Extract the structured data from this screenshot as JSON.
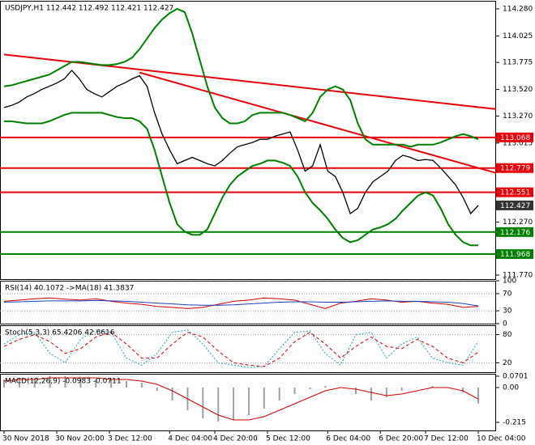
{
  "chart_data": [
    {
      "type": "line",
      "title": "USDJPY,H1  112.442 112.492 112.421 112.427",
      "xticks": [
        {
          "value": 0,
          "label": "30 Nov 2018"
        },
        {
          "value": 7,
          "label": "30 Nov 20:00"
        },
        {
          "value": 14,
          "label": "3 Dec 12:00"
        },
        {
          "value": 22,
          "label": "4 Dec 04:00"
        },
        {
          "value": 28,
          "label": "4 Dec 20:00"
        },
        {
          "value": 35,
          "label": "5 Dec 12:00"
        },
        {
          "value": 43,
          "label": "6 Dec 04:00"
        },
        {
          "value": 50,
          "label": "6 Dec 20:00"
        },
        {
          "value": 56,
          "label": "7 Dec 12:00"
        },
        {
          "value": 63,
          "label": "10 Dec 04:00"
        }
      ],
      "ylim": [
        111.732,
        114.356
      ],
      "yticks": [
        {
          "value": 114.28,
          "label": "114.280"
        },
        114.025,
        113.775,
        {
          "value": 113.52,
          "label": "113.520"
        },
        {
          "value": 113.27,
          "label": "113.270"
        },
        113.015,
        {
          "value": 112.27,
          "label": "112.270"
        },
        {
          "value": 111.77,
          "label": "111.770"
        }
      ],
      "series": [
        {
          "color": "#000000",
          "width": 1.3,
          "values": [
            113.35,
            113.37,
            113.4,
            113.45,
            113.48,
            113.52,
            113.55,
            113.58,
            113.62,
            113.7,
            113.62,
            113.52,
            113.48,
            113.45,
            113.5,
            113.55,
            113.58,
            113.62,
            113.65,
            113.55,
            113.3,
            113.1,
            112.95,
            112.82,
            112.85,
            112.88,
            112.85,
            112.82,
            112.8,
            112.85,
            112.92,
            112.98,
            113.0,
            113.02,
            113.05,
            113.05,
            113.08,
            113.1,
            113.12,
            112.95,
            112.75,
            112.8,
            113.0,
            112.75,
            112.7,
            112.55,
            112.35,
            112.4,
            112.55,
            112.65,
            112.7,
            112.75,
            112.85,
            112.9,
            112.88,
            112.85,
            112.86,
            112.85,
            112.78,
            112.7,
            112.62,
            112.5,
            112.35,
            112.427
          ]
        },
        {
          "color": "#008000",
          "width": 2,
          "values": [
            113.55,
            113.56,
            113.58,
            113.6,
            113.62,
            113.64,
            113.66,
            113.7,
            113.74,
            113.78,
            113.78,
            113.77,
            113.76,
            113.75,
            113.75,
            113.76,
            113.78,
            113.82,
            113.9,
            114.0,
            114.1,
            114.18,
            114.24,
            114.28,
            114.25,
            114.05,
            113.8,
            113.55,
            113.35,
            113.25,
            113.2,
            113.2,
            113.22,
            113.28,
            113.3,
            113.3,
            113.3,
            113.3,
            113.28,
            113.25,
            113.22,
            113.3,
            113.45,
            113.52,
            113.55,
            113.52,
            113.42,
            113.2,
            113.05,
            113.0,
            113.0,
            113.0,
            113.0,
            113.0,
            112.98,
            113.0,
            113.0,
            113.0,
            113.02,
            113.05,
            113.08,
            113.1,
            113.08,
            113.05
          ]
        },
        {
          "color": "#008000",
          "width": 2,
          "values": [
            113.22,
            113.22,
            113.21,
            113.2,
            113.2,
            113.2,
            113.22,
            113.25,
            113.28,
            113.3,
            113.3,
            113.3,
            113.3,
            113.3,
            113.28,
            113.26,
            113.25,
            113.25,
            113.22,
            113.15,
            112.95,
            112.7,
            112.45,
            112.25,
            112.18,
            112.15,
            112.15,
            112.2,
            112.35,
            112.5,
            112.62,
            112.7,
            112.75,
            112.8,
            112.82,
            112.85,
            112.85,
            112.83,
            112.8,
            112.7,
            112.55,
            112.45,
            112.38,
            112.3,
            112.2,
            112.12,
            112.08,
            112.1,
            112.15,
            112.2,
            112.22,
            112.25,
            112.3,
            112.38,
            112.45,
            112.52,
            112.55,
            112.52,
            112.4,
            112.25,
            112.15,
            112.08,
            112.05,
            112.05
          ]
        }
      ],
      "trendlines": [
        {
          "color": "#e8000b",
          "points": [
            [
              0,
              113.85
            ],
            [
              66,
              113.33
            ]
          ]
        },
        {
          "color": "#e8000b",
          "points": [
            [
              18,
              113.68
            ],
            [
              66,
              112.72
            ]
          ]
        }
      ],
      "levels": [
        {
          "value": 113.068,
          "color": "#e8000b"
        },
        {
          "value": 112.779,
          "color": "#e8000b"
        },
        {
          "value": 112.551,
          "color": "#e8000b"
        },
        {
          "value": 112.176,
          "color": "#008000"
        },
        {
          "value": 111.968,
          "color": "#008000"
        }
      ],
      "last": 112.427
    },
    {
      "type": "line",
      "title": "RSI(14) 40.1072  ->MA(18) 41.3837",
      "ylim": [
        0,
        100
      ],
      "yticks": [
        100,
        70,
        30,
        0
      ],
      "grid": true,
      "series": [
        {
          "color": "#d00000",
          "width": 1,
          "values": [
            52,
            55,
            58,
            60,
            57,
            55,
            58,
            52,
            48,
            45,
            40,
            38,
            35,
            38,
            45,
            52,
            55,
            60,
            58,
            55,
            45,
            35,
            48,
            52,
            58,
            55,
            50,
            52,
            48,
            45,
            38,
            40.1072
          ]
        },
        {
          "color": "#1f3fbf",
          "width": 1,
          "values": [
            50,
            51,
            52,
            53,
            53,
            53,
            54,
            53,
            52,
            50,
            48,
            46,
            44,
            43,
            43,
            44,
            46,
            48,
            50,
            51,
            51,
            50,
            50,
            51,
            52,
            53,
            52,
            52,
            51,
            50,
            47,
            41.3837
          ]
        }
      ]
    },
    {
      "type": "line",
      "title": "Stoch(5,3,3) 65.4206 42.6616",
      "ylim": [
        0,
        100
      ],
      "yticks": [
        80,
        20
      ],
      "grid": true,
      "series": [
        {
          "color": "#20a0c0",
          "width": 1,
          "dash": "2,2",
          "values": [
            60,
            80,
            85,
            40,
            20,
            70,
            90,
            85,
            30,
            15,
            40,
            85,
            90,
            60,
            20,
            15,
            10,
            12,
            50,
            85,
            88,
            40,
            15,
            80,
            85,
            30,
            60,
            75,
            30,
            20,
            15,
            65.4206
          ]
        },
        {
          "color": "#d00000",
          "width": 1,
          "dash": "4,3",
          "values": [
            55,
            70,
            80,
            65,
            40,
            50,
            75,
            85,
            60,
            30,
            30,
            60,
            85,
            75,
            45,
            20,
            15,
            12,
            30,
            65,
            85,
            60,
            30,
            55,
            75,
            55,
            50,
            70,
            55,
            30,
            20,
            42.6616
          ]
        }
      ]
    },
    {
      "type": "line",
      "title": "MACD(12,26,9) -0.0983 -0.0711",
      "ylim": [
        -0.265,
        0.085
      ],
      "yticks": [
        0.0701,
        {
          "value": 0,
          "label": "0.00"
        },
        -0.215
      ],
      "series": [
        {
          "type": "bar",
          "color": "#a0a0a0",
          "values": [
            0.05,
            0.06,
            0.06,
            0.07,
            0.07,
            0.06,
            0.05,
            0.05,
            0.04,
            0.03,
            -0.02,
            -0.08,
            -0.14,
            -0.19,
            -0.21,
            -0.2,
            -0.17,
            -0.13,
            -0.08,
            -0.04,
            -0.01,
            0.01,
            0.0,
            -0.04,
            -0.08,
            -0.06,
            -0.02,
            0.0,
            0.01,
            0.0,
            -0.03,
            -0.0983
          ]
        },
        {
          "color": "#d00000",
          "width": 1,
          "values": [
            0.04,
            0.05,
            0.05,
            0.06,
            0.06,
            0.06,
            0.06,
            0.05,
            0.05,
            0.04,
            0.02,
            -0.02,
            -0.07,
            -0.12,
            -0.17,
            -0.2,
            -0.2,
            -0.18,
            -0.14,
            -0.1,
            -0.06,
            -0.02,
            0.0,
            -0.01,
            -0.03,
            -0.05,
            -0.04,
            -0.02,
            0.0,
            0.0,
            -0.02,
            -0.0711
          ]
        }
      ]
    }
  ]
}
